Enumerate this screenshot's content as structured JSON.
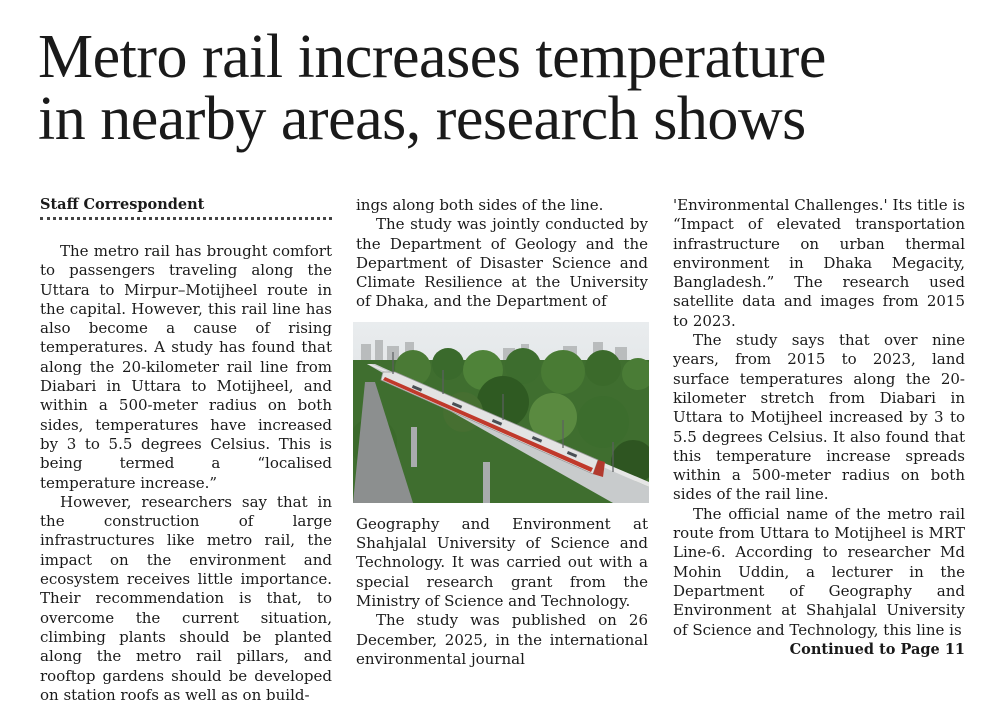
{
  "article": {
    "headline_line1": "Metro rail increases temperature",
    "headline_line2": "in nearby areas, research shows",
    "byline": "Staff Correspondent",
    "col1": [
      "The metro rail has brought comfort to passengers traveling along the Uttara to Mirpur–Motijheel route in the capital. However, this rail line has also become a cause of rising temperatures. A study has found that along the 20-kilometer rail line from Diabari in Uttara to Motijheel, and within a 500-meter radius on both sides, temperatures have increased by 3 to 5.5 degrees Celsius. This is being termed a “localised temperature increase.”",
      "However, researchers say that in the construction of large infrastructures like metro rail, the impact on the environment and ecosystem receives little importance. Their recommendation is that, to overcome the current situation, climbing plants should be planted along the metro rail pillars, and rooftop gardens should be developed on station roofs as well as on build-"
    ],
    "col2_top": [
      "ings along both sides of the line.",
      "The study was jointly conducted by the Department of Geology and the Department of Disaster Science and Climate Resilience at the University of Dhaka, and the Department of"
    ],
    "col2_bottom": [
      "Geography and Environment at Shahjalal University of Science and Technology. It was carried out with a special research grant from the Ministry of Science and Technology.",
      "The study was published on 26 December, 2025, in the international environmental journal"
    ],
    "col3": [
      "'Environmental Challenges.' Its title is “Impact of elevated transportation infrastructure on urban thermal environment in Dhaka Megacity, Bangladesh.” The research used satellite data and images from 2015 to 2023.",
      "The study says that over nine years, from 2015 to 2023, land surface temperatures along the 20-kilometer stretch from Diabari in Uttara to Motijheel increased by 3 to 5.5 degrees Celsius. It also found that this temperature increase spreads within a 500-meter radius on both sides of the rail line.",
      "The official name of the metro rail route from Uttara to Motijheel is MRT Line-6. According to researcher Md Mohin Uddin, a lecturer in the Department of Geography and Environment at Shahjalal University of Science and Technology, this line is"
    ],
    "continued": "Continued to Page 11"
  },
  "photo": {
    "subject": "metro-train-on-elevated-viaduct",
    "colors": {
      "sky": "#dfe3e6",
      "trees": "#3d6b2e",
      "train": "#d9d9d9",
      "stripe": "#c0392b"
    }
  }
}
